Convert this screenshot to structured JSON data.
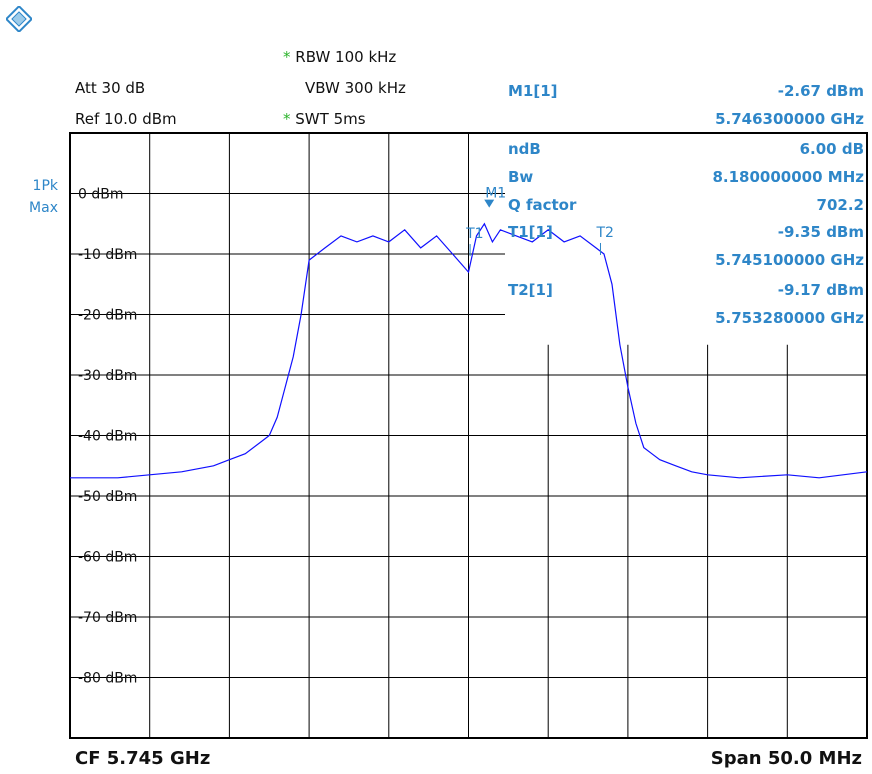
{
  "logo": {
    "icon": "rs-logo-icon"
  },
  "settings": {
    "rbw": "RBW 100 kHz",
    "vbw": "VBW 300 kHz",
    "swt": "SWT 5ms",
    "att": "Att  30 dB",
    "ref": "Ref  10.0 dBm",
    "star": "*"
  },
  "trace_label": {
    "line1": "1Pk",
    "line2": "Max"
  },
  "marker_table": [
    {
      "label": "M1[1]",
      "value": "-2.67 dBm"
    },
    {
      "label": "",
      "value": "5.746300000 GHz"
    },
    {
      "label": "ndB",
      "value": "6.00 dB"
    },
    {
      "label": "Bw",
      "value": "8.180000000 MHz"
    },
    {
      "label": "Q factor",
      "value": "702.2"
    },
    {
      "label": "T1[1]",
      "value": "-9.35 dBm"
    },
    {
      "label": "",
      "value": "5.745100000 GHz"
    },
    {
      "label": "T2[1]",
      "value": "-9.17 dBm"
    },
    {
      "label": "",
      "value": "5.753280000 GHz"
    }
  ],
  "footer": {
    "cf": "CF 5.745 GHz",
    "span": "Span 50.0 MHz"
  },
  "colors": {
    "trace": "#1010ff",
    "marker": "#2e86c8",
    "grid": "#000000"
  },
  "chart_data": {
    "type": "line",
    "xlabel": "",
    "ylabel": "",
    "x_units": "MHz offset from CF",
    "xlim": [
      -25,
      25
    ],
    "ylim": [
      -90,
      10
    ],
    "y_ticks": [
      "0 dBm",
      "-10 dBm",
      "-20 dBm",
      "-30 dBm",
      "-40 dBm",
      "-50 dBm",
      "-60 dBm",
      "-70 dBm",
      "-80 dBm"
    ],
    "y_tick_values": [
      0,
      -10,
      -20,
      -30,
      -40,
      -50,
      -60,
      -70,
      -80
    ],
    "grid": true,
    "series": [
      {
        "x": [
          -25,
          -22,
          -20,
          -18,
          -16,
          -15,
          -14,
          -13,
          -12.5,
          -12,
          -11.5,
          -11,
          -10.5,
          -10,
          -9,
          -8,
          -7,
          -6,
          -5,
          -4,
          -3,
          -2,
          -1,
          0,
          0.5,
          1,
          1.5,
          2,
          3,
          4,
          5,
          6,
          7,
          8,
          8.5,
          9,
          9.5,
          10,
          10.5,
          11,
          11.5,
          12,
          13,
          14,
          15,
          17,
          20,
          22,
          25
        ],
        "y": [
          -47,
          -47,
          -46.5,
          -46,
          -45,
          -44,
          -43,
          -41,
          -40,
          -37,
          -32,
          -27,
          -20,
          -11,
          -9,
          -7,
          -8,
          -7,
          -8,
          -6,
          -9,
          -7,
          -10,
          -13,
          -7,
          -5,
          -8,
          -6,
          -7,
          -8,
          -6,
          -8,
          -7,
          -9,
          -10,
          -15,
          -25,
          -32,
          -38,
          -42,
          -43,
          -44,
          -45,
          -46,
          -46.5,
          -47,
          -46.5,
          -47,
          -46
        ]
      }
    ],
    "markers": [
      {
        "name": "M1",
        "x": 1.3,
        "y": -2.67
      },
      {
        "name": "T1",
        "x": 0.1,
        "y": -9.35
      },
      {
        "name": "T2",
        "x": 8.28,
        "y": -9.17
      }
    ]
  }
}
